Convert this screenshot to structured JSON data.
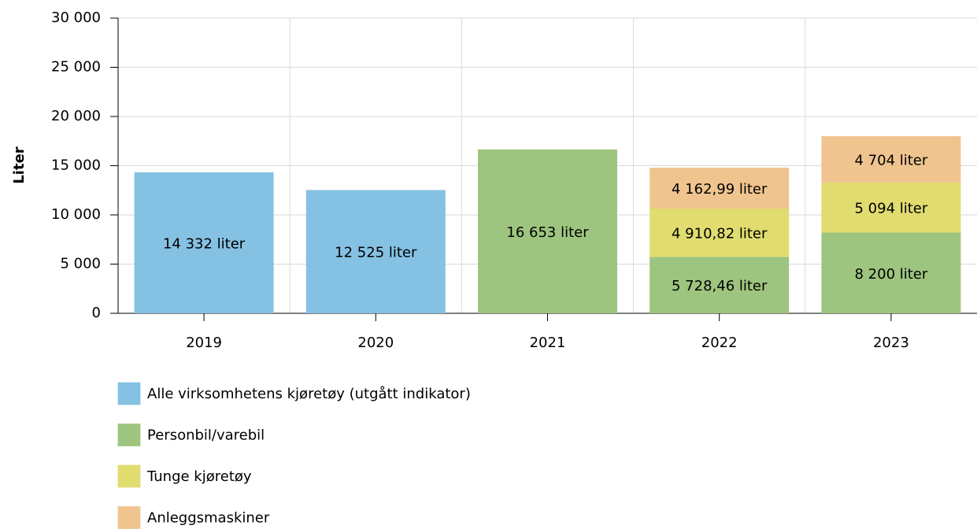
{
  "chart_data": {
    "type": "stacked_bar",
    "y_label": "Liter",
    "categories": [
      "2019",
      "2020",
      "2021",
      "2022",
      "2023"
    ],
    "series": [
      {
        "name": "Alle virksomhetens kjøretøy (utgått indikator)",
        "color": "#85c1e3",
        "values": [
          14332,
          12525,
          null,
          null,
          null
        ],
        "value_labels": [
          "14 332 liter",
          "12 525 liter",
          null,
          null,
          null
        ]
      },
      {
        "name": "Personbil/varebil",
        "color": "#9dc57f",
        "values": [
          null,
          null,
          16653,
          5728.46,
          8200
        ],
        "value_labels": [
          null,
          null,
          "16 653 liter",
          "5 728,46 liter",
          "8 200 liter"
        ]
      },
      {
        "name": "Tunge kjøretøy",
        "color": "#e0dc6f",
        "values": [
          null,
          null,
          null,
          4910.82,
          5094
        ],
        "value_labels": [
          null,
          null,
          null,
          "4 910,82 liter",
          "5 094 liter"
        ]
      },
      {
        "name": "Anleggsmaskiner",
        "color": "#efc48f",
        "values": [
          null,
          null,
          null,
          4162.99,
          4704
        ],
        "value_labels": [
          null,
          null,
          null,
          "4 162,99 liter",
          "4 704 liter"
        ]
      }
    ],
    "ylim": [
      0,
      30000
    ],
    "yticks": [
      0,
      {
        "value": 5000,
        "label": "5 000"
      },
      {
        "value": 10000,
        "label": "10 000"
      },
      {
        "value": 15000,
        "label": "15 000"
      },
      {
        "value": 20000,
        "label": "20 000"
      },
      {
        "value": 25000,
        "label": "25 000"
      },
      {
        "value": 30000,
        "label": "30 000"
      }
    ],
    "grid": true,
    "legend": "bottom-left"
  }
}
